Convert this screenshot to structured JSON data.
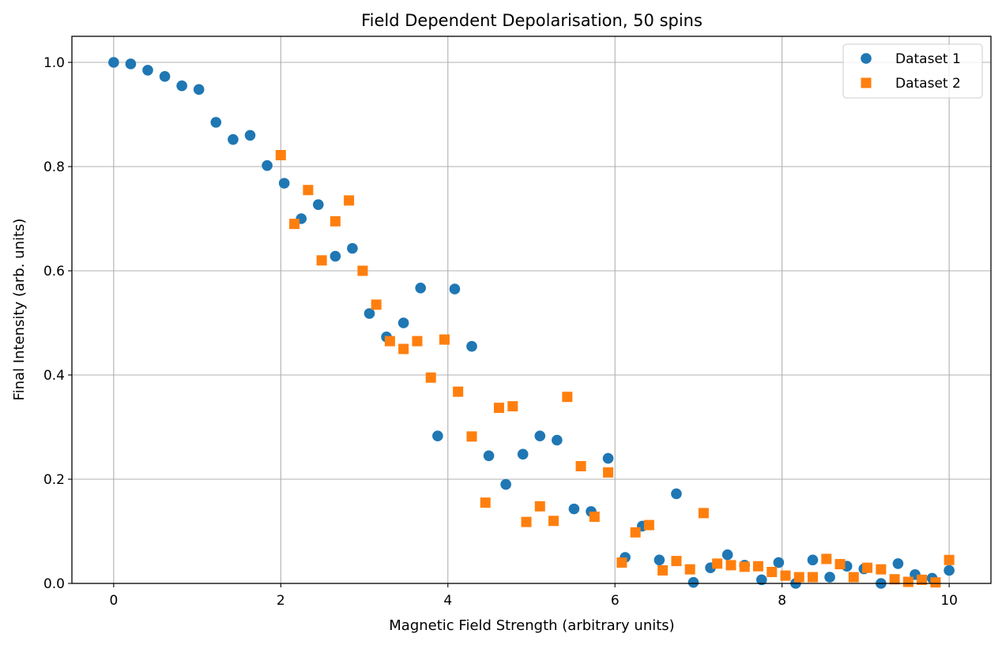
{
  "chart_data": {
    "type": "scatter",
    "title": "Field Dependent Depolarisation, 50 spins",
    "xlabel": "Magnetic Field Strength (arbitrary units)",
    "ylabel": "Final Intensity (arb. units)",
    "xlim": [
      -0.5,
      10.5
    ],
    "ylim": [
      0,
      1.05
    ],
    "xticks": [
      0,
      2,
      4,
      6,
      8,
      10
    ],
    "xtick_labels": [
      "0",
      "2",
      "4",
      "6",
      "8",
      "10"
    ],
    "yticks": [
      0.0,
      0.2,
      0.4,
      0.6,
      0.8,
      1.0
    ],
    "ytick_labels": [
      "0.0",
      "0.2",
      "0.4",
      "0.6",
      "0.8",
      "1.0"
    ],
    "grid": true,
    "legend_position": "top-right",
    "series": [
      {
        "name": "Dataset 1",
        "marker": "circle",
        "color": "#1f77b4",
        "x": [
          0.0,
          0.204,
          0.408,
          0.612,
          0.816,
          1.02,
          1.224,
          1.429,
          1.633,
          1.837,
          2.041,
          2.245,
          2.449,
          2.653,
          2.857,
          3.061,
          3.265,
          3.469,
          3.673,
          3.878,
          4.082,
          4.286,
          4.49,
          4.694,
          4.898,
          5.102,
          5.306,
          5.51,
          5.714,
          5.918,
          6.122,
          6.327,
          6.531,
          6.735,
          6.939,
          7.143,
          7.347,
          7.551,
          7.755,
          7.959,
          8.163,
          8.367,
          8.571,
          8.776,
          8.98,
          9.184,
          9.388,
          9.592,
          9.796,
          10.0
        ],
        "y": [
          1.0,
          0.997,
          0.985,
          0.973,
          0.955,
          0.948,
          0.885,
          0.852,
          0.86,
          0.802,
          0.768,
          0.7,
          0.727,
          0.628,
          0.643,
          0.518,
          0.473,
          0.5,
          0.567,
          0.283,
          0.565,
          0.455,
          0.245,
          0.19,
          0.248,
          0.283,
          0.275,
          0.143,
          0.138,
          0.24,
          0.05,
          0.11,
          0.045,
          0.172,
          0.002,
          0.03,
          0.055,
          0.035,
          0.007,
          0.04,
          0.0,
          0.045,
          0.012,
          0.033,
          0.028,
          0.0,
          0.038,
          0.017,
          0.01,
          0.025
        ]
      },
      {
        "name": "Dataset 2",
        "marker": "square",
        "color": "#ff7f0e",
        "x": [
          2.0,
          2.163,
          2.327,
          2.49,
          2.653,
          2.816,
          2.98,
          3.143,
          3.306,
          3.469,
          3.633,
          3.796,
          3.959,
          4.122,
          4.286,
          4.449,
          4.612,
          4.776,
          4.939,
          5.102,
          5.265,
          5.429,
          5.592,
          5.755,
          5.918,
          6.082,
          6.245,
          6.408,
          6.571,
          6.735,
          6.898,
          7.061,
          7.224,
          7.388,
          7.551,
          7.714,
          7.878,
          8.041,
          8.204,
          8.367,
          8.531,
          8.694,
          8.857,
          9.02,
          9.184,
          9.347,
          9.51,
          9.673,
          9.837,
          10.0
        ],
        "y": [
          0.822,
          0.69,
          0.755,
          0.62,
          0.695,
          0.735,
          0.6,
          0.535,
          0.465,
          0.45,
          0.465,
          0.395,
          0.468,
          0.368,
          0.282,
          0.155,
          0.337,
          0.34,
          0.118,
          0.148,
          0.12,
          0.358,
          0.225,
          0.128,
          0.213,
          0.04,
          0.098,
          0.112,
          0.025,
          0.043,
          0.027,
          0.135,
          0.038,
          0.035,
          0.032,
          0.033,
          0.022,
          0.015,
          0.012,
          0.012,
          0.047,
          0.037,
          0.012,
          0.03,
          0.027,
          0.008,
          0.003,
          0.007,
          0.002,
          0.045
        ]
      }
    ]
  }
}
